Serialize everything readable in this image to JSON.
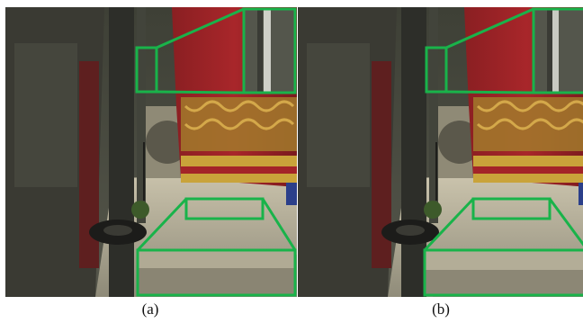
{
  "figure": {
    "panels": [
      {
        "id": "a",
        "caption": "(a)"
      },
      {
        "id": "b",
        "caption": "(b)"
      }
    ],
    "highlight_color": "#19b34a"
  }
}
